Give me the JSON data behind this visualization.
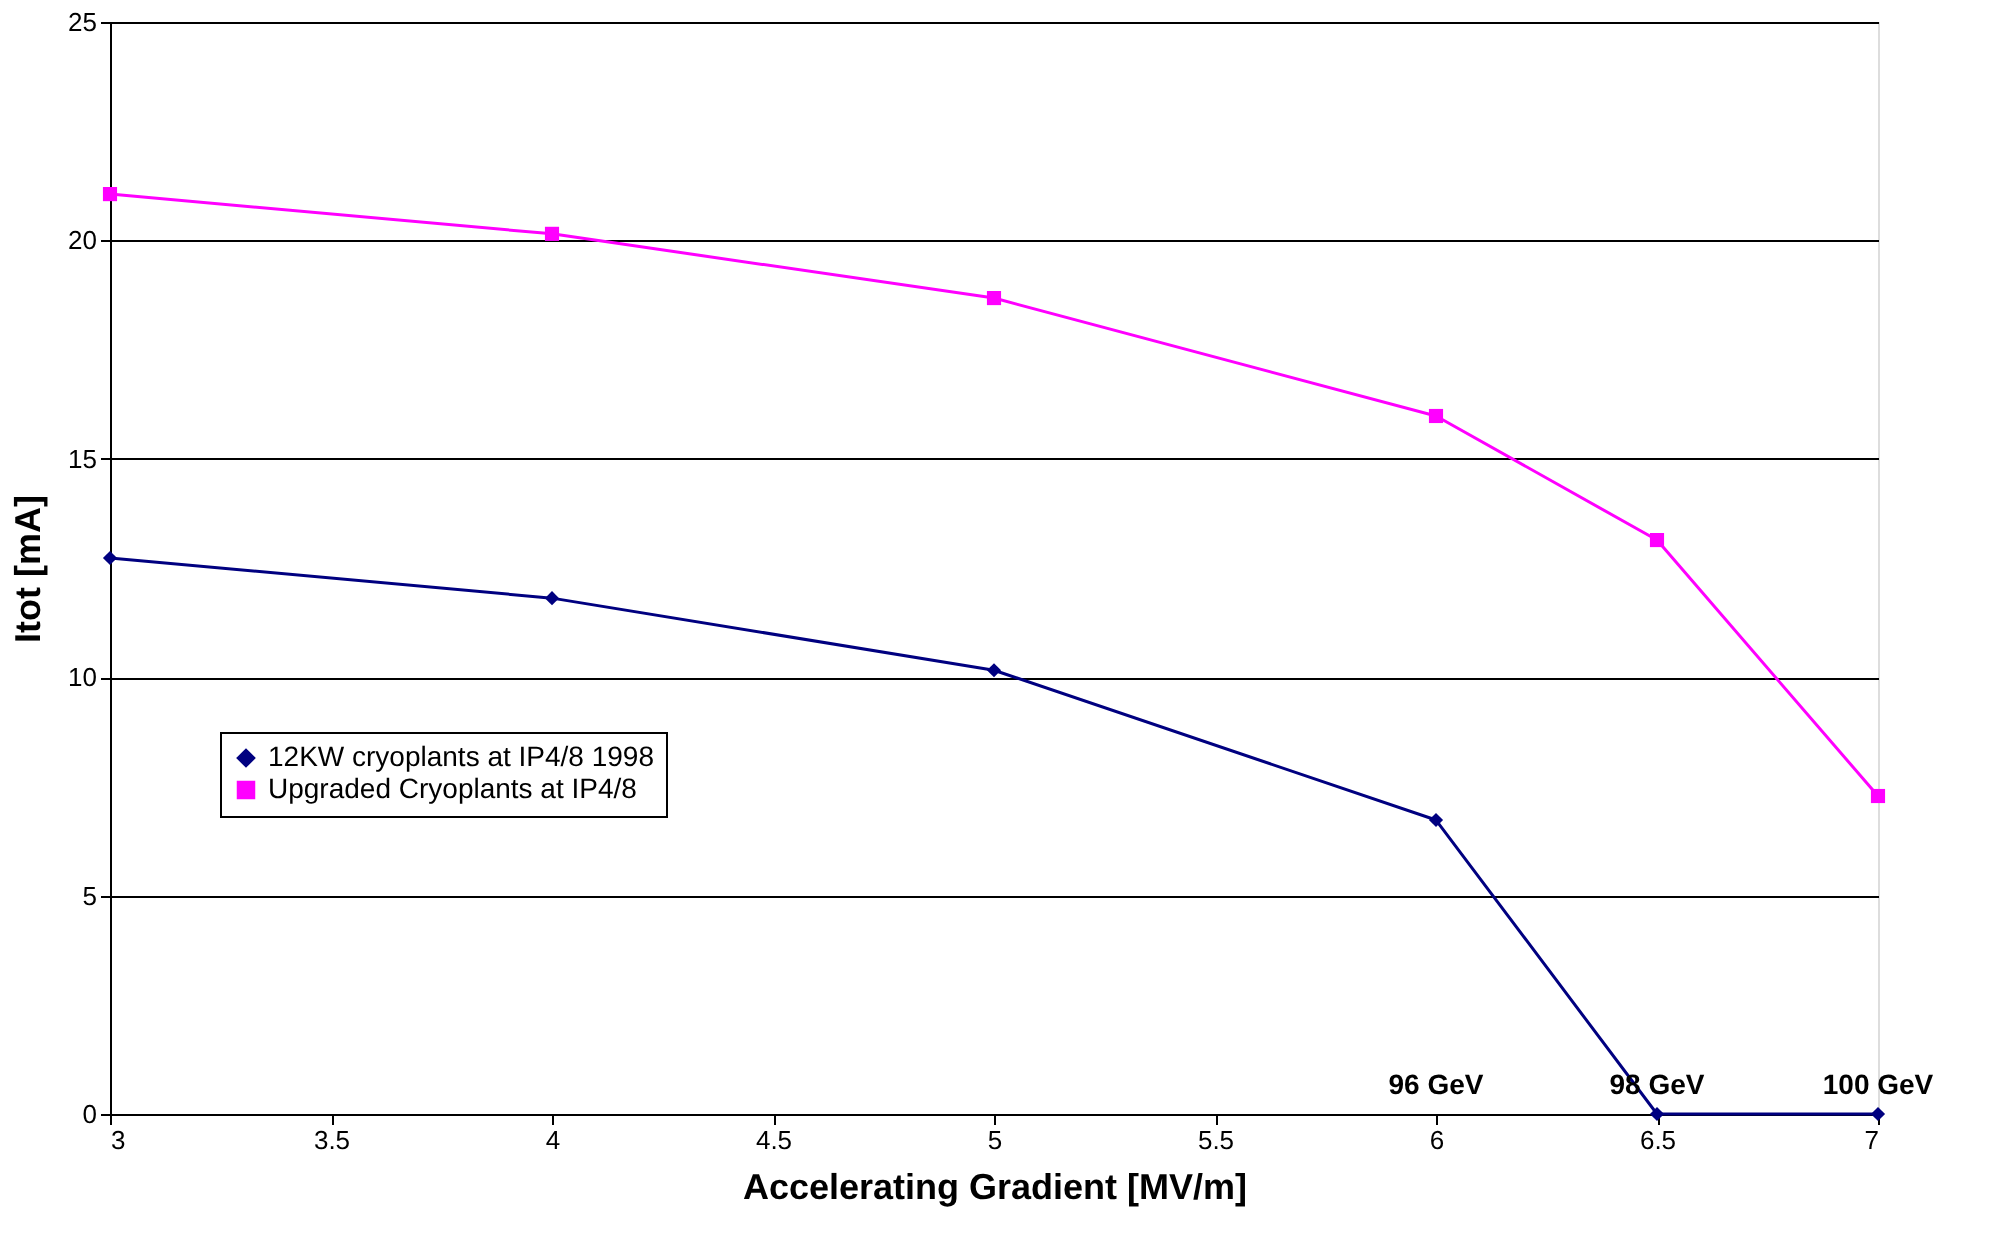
{
  "chart_data": {
    "type": "line",
    "xlabel": "Accelerating Gradient [MV/m]",
    "ylabel": "Itot [mA]",
    "x": [
      3,
      4,
      5,
      6,
      6.5,
      7
    ],
    "series": [
      {
        "name": "12KW cryoplants at IP4/8 1998",
        "color": "#000080",
        "marker": "diamond",
        "values": [
          12.73,
          11.81,
          10.16,
          6.73,
          0,
          0
        ]
      },
      {
        "name": "Upgraded Cryoplants at IP4/8",
        "color": "#ff00ff",
        "marker": "square",
        "values": [
          21.06,
          20.15,
          18.68,
          15.98,
          13.14,
          7.28
        ]
      }
    ],
    "xlim": [
      3,
      7
    ],
    "xticks": [
      3,
      3.5,
      4,
      4.5,
      5,
      5.5,
      6,
      6.5,
      7
    ],
    "ylim": [
      0,
      25
    ],
    "yticks": [
      0,
      5,
      10,
      15,
      20,
      25
    ],
    "grid": "y",
    "legend": "left",
    "line_style": "solid",
    "annotations": [
      "96 GeV",
      {
        "text": "98 GeV",
        "x": 6.5,
        "y": 0
      },
      {
        "text": "100 GeV",
        "x": 7,
        "y": 0
      }
    ]
  }
}
